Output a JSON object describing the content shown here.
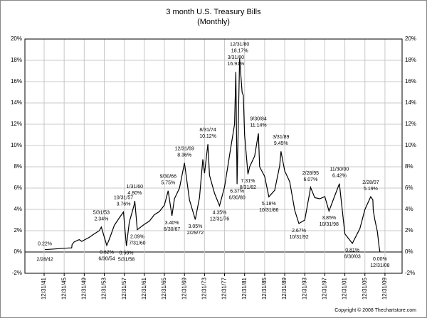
{
  "chart_data": {
    "type": "line",
    "title": "3 month U.S. Treasury Bills",
    "subtitle": "(Monthly)",
    "footer": "Copyright © 2008 Thechartstore.com",
    "color": "#000000",
    "grid": true,
    "x": [
      "2/28/42",
      "12/31/46",
      "6/30/47",
      "7/31/47",
      "12/31/47",
      "12/31/48",
      "6/30/49",
      "12/31/50",
      "12/31/51",
      "12/31/52",
      "5/31/53",
      "6/30/54",
      "12/31/54",
      "12/31/55",
      "12/31/56",
      "10/31/57",
      "5/31/58",
      "12/31/58",
      "12/31/59",
      "1/31/60",
      "7/31/60",
      "12/31/61",
      "12/31/62",
      "12/31/63",
      "12/31/64",
      "12/31/65",
      "9/30/66",
      "6/30/67",
      "12/31/67",
      "12/31/68",
      "12/31/69",
      "12/31/70",
      "2/29/72",
      "12/31/72",
      "8/31/73",
      "12/31/73",
      "8/31/74",
      "12/31/74",
      "12/31/75",
      "12/31/76",
      "12/31/77",
      "12/31/78",
      "12/31/79",
      "3/31/80",
      "6/30/80",
      "12/31/80",
      "6/30/81",
      "9/30/81",
      "12/31/81",
      "8/31/82",
      "12/31/82",
      "12/31/83",
      "9/30/84",
      "12/31/84",
      "12/31/85",
      "10/31/86",
      "12/31/87",
      "12/31/88",
      "3/31/89",
      "12/31/89",
      "12/31/90",
      "12/31/91",
      "10/31/92",
      "12/31/93",
      "12/31/94",
      "2/28/95",
      "12/31/95",
      "12/31/96",
      "12/31/97",
      "10/31/98",
      "12/31/99",
      "11/30/00",
      "12/31/01",
      "6/30/03",
      "12/31/04",
      "12/31/05",
      "2/28/07",
      "7/31/07",
      "8/31/07",
      "12/31/07",
      "6/30/08",
      "10/31/08",
      "12/31/08"
    ],
    "values": [
      0.22,
      0.38,
      0.38,
      0.7,
      0.95,
      1.16,
      1.0,
      1.37,
      1.7,
      2.0,
      2.34,
      0.62,
      1.2,
      2.5,
      3.2,
      3.76,
      0.56,
      2.8,
      4.5,
      4.8,
      2.09,
      2.6,
      2.9,
      3.5,
      3.8,
      4.4,
      5.75,
      3.4,
      5.0,
      6.0,
      8.36,
      4.9,
      3.05,
      5.1,
      8.7,
      7.4,
      10.12,
      7.2,
      5.5,
      4.35,
      6.1,
      9.1,
      12.0,
      16.91,
      6.37,
      18.17,
      15.0,
      14.7,
      11.0,
      7.31,
      8.0,
      9.0,
      11.14,
      8.0,
      7.1,
      5.18,
      5.8,
      8.1,
      9.45,
      7.6,
      6.6,
      3.9,
      2.67,
      3.0,
      5.6,
      6.07,
      5.1,
      5.0,
      5.2,
      3.85,
      5.3,
      6.42,
      1.7,
      0.81,
      2.2,
      4.0,
      5.19,
      4.9,
      3.9,
      3.0,
      1.9,
      0.5,
      0.0
    ],
    "xlim": [
      "3/1/38",
      "6/1/13"
    ],
    "xticks": [
      "12/31/41",
      "12/31/45",
      "12/31/49",
      "12/31/53",
      "12/31/57",
      "12/31/61",
      "12/31/65",
      "12/31/69",
      "12/31/73",
      "12/31/77",
      "12/31/81",
      "12/31/85",
      "12/31/89",
      "12/31/93",
      "12/31/97",
      "12/31/01",
      "12/31/05",
      "12/31/09"
    ],
    "ylim": [
      -2,
      20
    ],
    "yticks": [
      {
        "value": -2,
        "label": "-2%"
      },
      {
        "value": 0,
        "label": "0%"
      },
      {
        "value": 2,
        "label": "2%"
      },
      {
        "value": 4,
        "label": "4%"
      },
      {
        "value": 6,
        "label": "6%"
      },
      {
        "value": 8,
        "label": "8%"
      },
      {
        "value": 10,
        "label": "10%"
      },
      {
        "value": 12,
        "label": "12%"
      },
      {
        "value": 14,
        "label": "14%"
      },
      {
        "value": 16,
        "label": "16%"
      },
      {
        "value": 18,
        "label": "18%"
      },
      {
        "value": 20,
        "label": "20%"
      }
    ],
    "annotations": [
      {
        "date": "2/28/42",
        "value": 0.22,
        "label": "0.22%"
      },
      {
        "date": "5/31/53",
        "value": 2.34,
        "label": "2.34%"
      },
      {
        "date": "6/30/54",
        "value": 0.62,
        "label": "0.62%"
      },
      {
        "date": "10/31/57",
        "value": 3.76,
        "label": "3.76%"
      },
      {
        "date": "5/31/58",
        "value": 0.56,
        "label": "0.56%"
      },
      {
        "date": "1/31/60",
        "value": 4.8,
        "label": "4.80%"
      },
      {
        "date": "7/31/60",
        "value": 2.09,
        "label": "2.09%"
      },
      {
        "date": "9/30/66",
        "value": 5.75,
        "label": "5.75%"
      },
      {
        "date": "6/30/67",
        "value": 3.4,
        "label": "3.40%"
      },
      {
        "date": "12/31/69",
        "value": 8.36,
        "label": "8.36%"
      },
      {
        "date": "2/29/72",
        "value": 3.05,
        "label": "3.05%"
      },
      {
        "date": "8/31/74",
        "value": 10.12,
        "label": "10.12%"
      },
      {
        "date": "12/31/76",
        "value": 4.35,
        "label": "4.35%"
      },
      {
        "date": "3/31/80",
        "value": 16.91,
        "label": "16.91%"
      },
      {
        "date": "6/30/80",
        "value": 6.37,
        "label": "6.37%"
      },
      {
        "date": "12/31/80",
        "value": 18.17,
        "label": "18.17%"
      },
      {
        "date": "8/31/82",
        "value": 7.31,
        "label": "7.31%"
      },
      {
        "date": "9/30/84",
        "value": 11.14,
        "label": "11.14%"
      },
      {
        "date": "10/31/86",
        "value": 5.18,
        "label": "5.18%"
      },
      {
        "date": "3/31/89",
        "value": 9.45,
        "label": "9.45%"
      },
      {
        "date": "10/31/92",
        "value": 2.67,
        "label": "2.67%"
      },
      {
        "date": "2/28/95",
        "value": 6.07,
        "label": "6.07%"
      },
      {
        "date": "10/31/98",
        "value": 3.85,
        "label": "3.85%"
      },
      {
        "date": "11/30/00",
        "value": 6.42,
        "label": "6.42%"
      },
      {
        "date": "6/30/03",
        "value": 0.81,
        "label": "0.81%"
      },
      {
        "date": "2/28/07",
        "value": 5.19,
        "label": "5.19%"
      },
      {
        "date": "12/31/08",
        "value": 0.0,
        "label": "0.00%"
      }
    ]
  }
}
